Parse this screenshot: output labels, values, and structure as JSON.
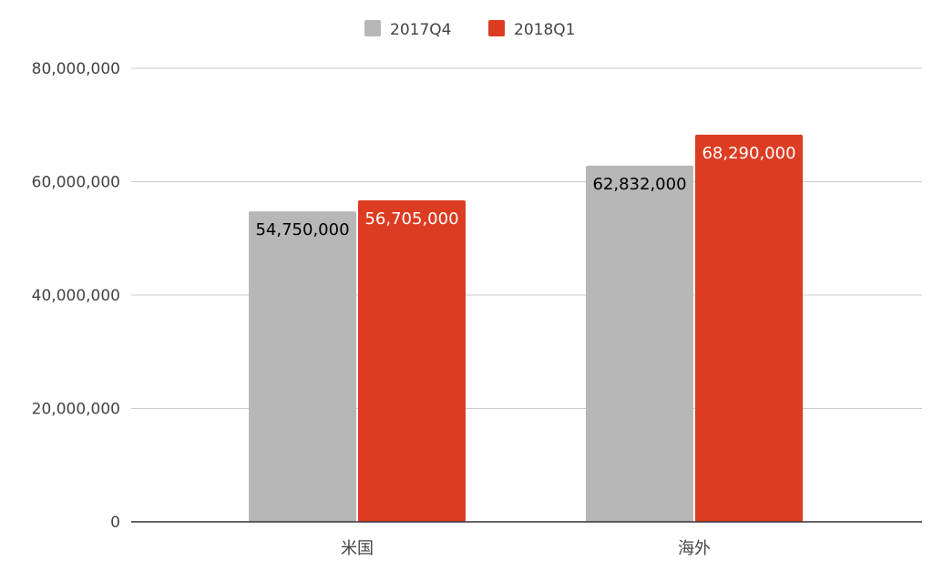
{
  "chart_data": {
    "type": "bar",
    "title": "",
    "xlabel": "",
    "ylabel": "",
    "categories": [
      "米国",
      "海外"
    ],
    "series": [
      {
        "name": "2017Q4",
        "color": "#b7b7b7",
        "values": [
          54750000,
          62832000
        ],
        "data_labels": [
          "54,750,000",
          "62,832,000"
        ],
        "label_color": "#000000"
      },
      {
        "name": "2018Q1",
        "color": "#db3c22",
        "values": [
          56705000,
          68290000
        ],
        "data_labels": [
          "56,705,000",
          "68,290,000"
        ],
        "label_color": "#ffffff"
      }
    ],
    "ylim": [
      0,
      80000000
    ],
    "yticks": [
      0,
      20000000,
      40000000,
      60000000,
      80000000
    ],
    "ytick_labels": [
      "0",
      "20,000,000",
      "40,000,000",
      "60,000,000",
      "80,000,000"
    ],
    "grid": true,
    "legend_position": "top-center"
  }
}
